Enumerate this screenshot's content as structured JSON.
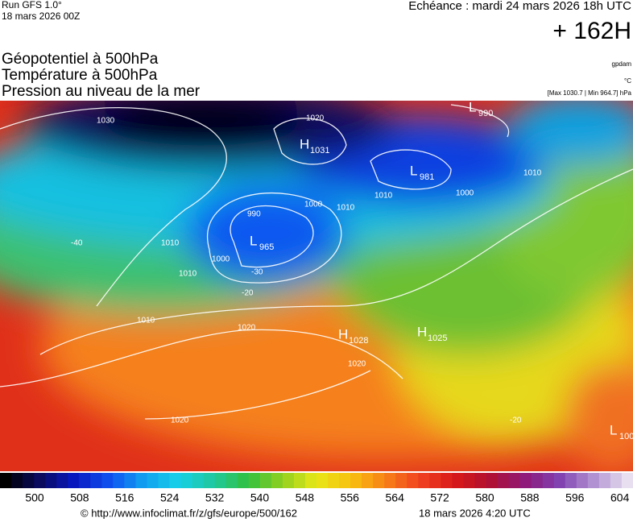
{
  "header": {
    "run": "Run GFS 1.0°",
    "run_date": "18 mars 2026 00Z",
    "forecast": "Echéance : mardi 24 mars 2026 18h UTC",
    "lead": "+ 162H"
  },
  "titles": [
    "Géopotentiel à 500hPa",
    "Température à 500hPa",
    "Pression au niveau de la mer"
  ],
  "units": {
    "geopotential": "gpdam",
    "temperature": "°C",
    "pressure": "[Max 1030.7 | Min 964.7] hPa"
  },
  "map": {
    "centers": [
      {
        "letter": "H",
        "value": "1031"
      },
      {
        "letter": "L",
        "value": "965"
      },
      {
        "letter": "L",
        "value": "981"
      },
      {
        "letter": "L",
        "value": "990"
      },
      {
        "letter": "H",
        "value": "1028"
      },
      {
        "letter": "H",
        "value": "1025"
      },
      {
        "letter": "L",
        "value": "100"
      }
    ],
    "isobar_labels": [
      "1030",
      "1020",
      "1020",
      "1020",
      "1020",
      "1010",
      "1010",
      "1010",
      "1010",
      "1010",
      "1010",
      "1000",
      "1000",
      "1000",
      "990"
    ],
    "temperature_labels": [
      "-40",
      "-30",
      "-20",
      "-20"
    ]
  },
  "legend": {
    "labels": [
      "500",
      "508",
      "516",
      "524",
      "532",
      "540",
      "548",
      "556",
      "564",
      "572",
      "580",
      "588",
      "596",
      "604"
    ]
  },
  "footer": {
    "url": "© http://www.infoclimat.fr/z/gfs/europe/500/162",
    "generated": "18 mars 2026  4:20 UTC"
  }
}
